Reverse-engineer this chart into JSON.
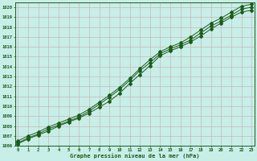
{
  "title": "Graphe pression niveau de la mer (hPa)",
  "xlabel_ticks": [
    0,
    1,
    2,
    3,
    4,
    5,
    6,
    7,
    8,
    9,
    10,
    11,
    12,
    13,
    14,
    15,
    16,
    17,
    18,
    19,
    20,
    21,
    22,
    23
  ],
  "ylim": [
    1006,
    1020.5
  ],
  "xlim": [
    -0.3,
    23.3
  ],
  "yticks": [
    1006,
    1007,
    1008,
    1009,
    1010,
    1011,
    1012,
    1013,
    1014,
    1015,
    1016,
    1017,
    1018,
    1019,
    1020
  ],
  "bg_color": "#c8eee8",
  "grid_color": "#b0d8d0",
  "line_color": "#1a5c1a",
  "line1": [
    1006.2,
    1006.7,
    1007.1,
    1007.5,
    1008.0,
    1008.4,
    1008.8,
    1009.3,
    1009.9,
    1010.5,
    1011.3,
    1012.3,
    1013.2,
    1014.1,
    1015.1,
    1015.6,
    1016.0,
    1016.5,
    1017.1,
    1017.8,
    1018.4,
    1019.0,
    1019.5,
    1019.7
  ],
  "line2": [
    1006.3,
    1006.8,
    1007.2,
    1007.7,
    1008.1,
    1008.5,
    1008.9,
    1009.5,
    1010.2,
    1010.9,
    1011.7,
    1012.6,
    1013.6,
    1014.4,
    1015.3,
    1015.8,
    1016.2,
    1016.7,
    1017.4,
    1018.1,
    1018.6,
    1019.2,
    1019.8,
    1020.0
  ],
  "line3": [
    1006.5,
    1007.0,
    1007.4,
    1007.9,
    1008.3,
    1008.7,
    1009.1,
    1009.7,
    1010.4,
    1011.1,
    1011.9,
    1012.8,
    1013.8,
    1014.7,
    1015.5,
    1016.0,
    1016.4,
    1017.0,
    1017.7,
    1018.4,
    1018.9,
    1019.5,
    1020.1,
    1020.3
  ]
}
